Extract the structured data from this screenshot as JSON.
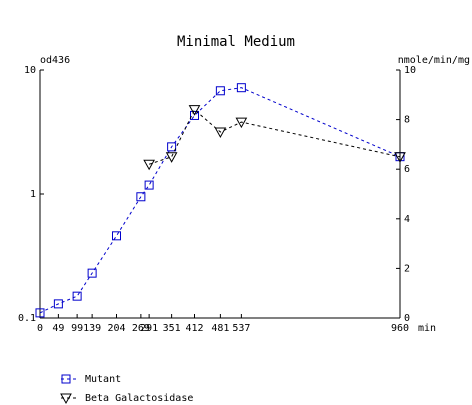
{
  "chart_data": {
    "type": "line",
    "title": "Minimal Medium",
    "y_label": "od436",
    "y2_label": "nmole/min/mg",
    "x_label": "min",
    "x": [
      0,
      49,
      99,
      139,
      204,
      269,
      291,
      351,
      412,
      481,
      537,
      960
    ],
    "xlim": [
      0,
      960
    ],
    "xticks": [
      0,
      49,
      99,
      139,
      204,
      269,
      291,
      351,
      412,
      481,
      537,
      960
    ],
    "yscale": "log",
    "ylim": [
      0.1,
      10
    ],
    "yticks": [
      0.1,
      1,
      10
    ],
    "y2lim": [
      0,
      10
    ],
    "y2ticks": [
      0,
      2,
      4,
      6,
      8,
      10
    ],
    "legend": "bottom-left",
    "series": [
      {
        "name": "Mutant",
        "color": "#0000cc",
        "marker": "square",
        "values": [
          0.11,
          0.13,
          0.15,
          0.23,
          0.46,
          0.95,
          1.18,
          2.4,
          4.3,
          6.8,
          7.2,
          2.0
        ]
      },
      {
        "name": "Beta Galactosidase",
        "color": "#000000",
        "marker": "triangle-down",
        "axis": "y2",
        "values": [
          null,
          null,
          null,
          null,
          null,
          null,
          6.2,
          6.5,
          8.4,
          7.5,
          7.9,
          6.5
        ]
      }
    ]
  }
}
